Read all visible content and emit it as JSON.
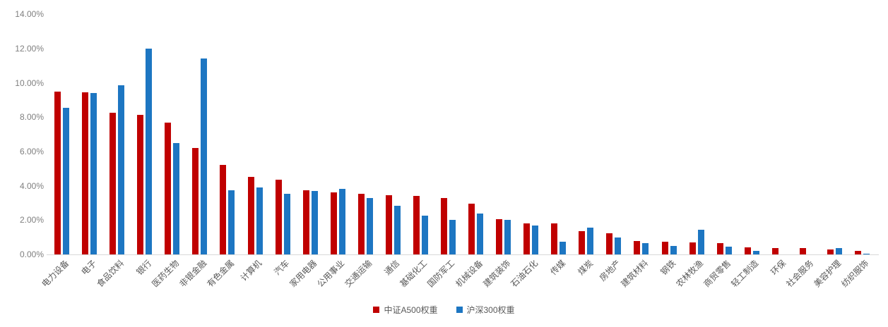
{
  "chart_data": {
    "type": "bar",
    "title": "",
    "categories": [
      "电力设备",
      "电子",
      "食品饮料",
      "银行",
      "医药生物",
      "非银金融",
      "有色金属",
      "计算机",
      "汽车",
      "家用电器",
      "公用事业",
      "交通运输",
      "通信",
      "基础化工",
      "国防军工",
      "机械设备",
      "建筑装饰",
      "石油石化",
      "传媒",
      "煤炭",
      "房地产",
      "建筑材料",
      "钢铁",
      "农林牧渔",
      "商贸零售",
      "轻工制造",
      "环保",
      "社会服务",
      "美容护理",
      "纺织服饰"
    ],
    "series": [
      {
        "name": "中证A500权重",
        "color": "#c00000",
        "values": [
          9.5,
          9.45,
          8.25,
          8.15,
          7.7,
          6.2,
          5.2,
          4.5,
          4.35,
          3.75,
          3.6,
          3.55,
          3.45,
          3.4,
          3.3,
          2.95,
          2.05,
          1.8,
          1.8,
          1.35,
          1.25,
          0.8,
          0.75,
          0.7,
          0.65,
          0.4,
          0.35,
          0.35,
          0.3,
          0.2
        ]
      },
      {
        "name": "沪深300权重",
        "color": "#1d76c2",
        "values": [
          8.55,
          9.4,
          9.85,
          12.0,
          6.5,
          11.4,
          3.75,
          3.9,
          3.55,
          3.7,
          3.8,
          3.3,
          2.85,
          2.25,
          2.0,
          2.4,
          2.0,
          1.7,
          0.75,
          1.55,
          1.0,
          0.65,
          0.5,
          1.45,
          0.45,
          0.2,
          0.0,
          0.0,
          0.35,
          0.05
        ]
      }
    ],
    "xlabel": "",
    "ylabel": "",
    "ylim": [
      0,
      14
    ],
    "y_step": 2,
    "y_tick_labels": [
      "0.00%",
      "2.00%",
      "4.00%",
      "6.00%",
      "8.00%",
      "10.00%",
      "12.00%",
      "14.00%"
    ],
    "grid": false,
    "legend_position": "bottom"
  }
}
